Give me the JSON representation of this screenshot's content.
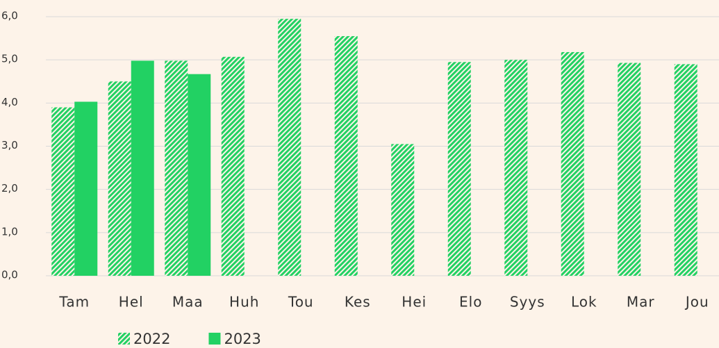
{
  "chart_data": {
    "type": "bar",
    "categories": [
      "Tam",
      "Hel",
      "Maa",
      "Huh",
      "Tou",
      "Kes",
      "Hei",
      "Elo",
      "Syys",
      "Lok",
      "Mar",
      "Jou"
    ],
    "series": [
      {
        "name": "2022",
        "color": "#22d163",
        "hatch": true,
        "values": [
          3.9,
          4.5,
          4.98,
          5.07,
          5.95,
          5.55,
          3.05,
          4.95,
          5.0,
          5.18,
          4.93,
          4.9
        ]
      },
      {
        "name": "2023",
        "color": "#22d163",
        "hatch": false,
        "values": [
          4.03,
          4.98,
          4.67,
          null,
          null,
          null,
          null,
          null,
          null,
          null,
          null,
          null
        ]
      }
    ],
    "ylim": [
      0,
      6
    ],
    "yticks": [
      {
        "value": 0,
        "label": "0,0"
      },
      {
        "value": 1,
        "label": "1,0"
      },
      {
        "value": 2,
        "label": "2,0"
      },
      {
        "value": 3,
        "label": "3,0"
      },
      {
        "value": 4,
        "label": "4,0"
      },
      {
        "value": 5,
        "label": "5,0"
      },
      {
        "value": 6,
        "label": "6,0"
      }
    ],
    "grid": true,
    "legend": "bottom-left"
  }
}
